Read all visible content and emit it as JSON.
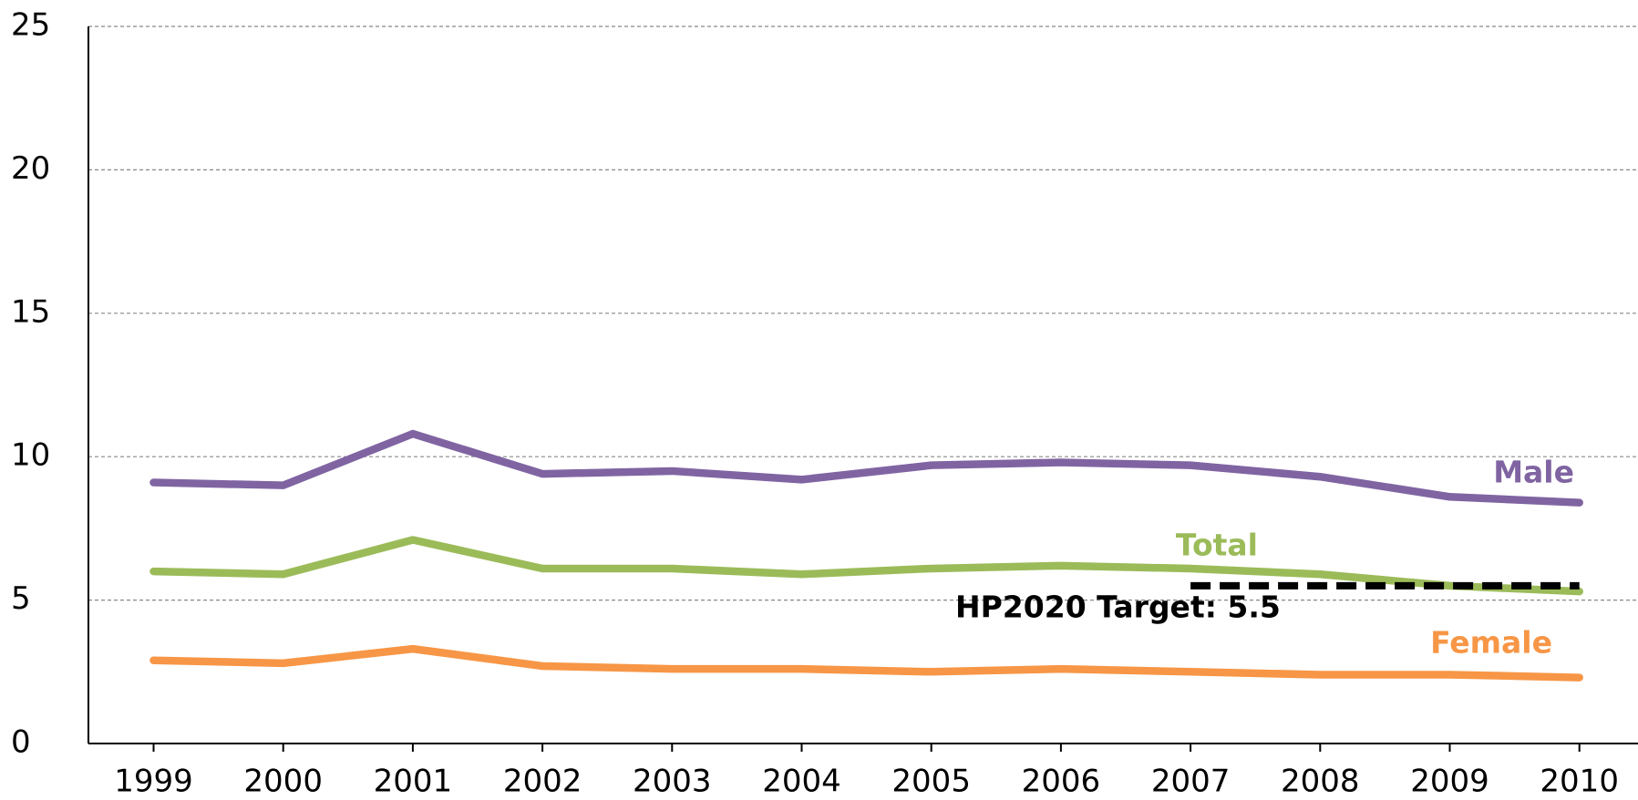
{
  "chart_data": {
    "type": "line",
    "categories": [
      "1999",
      "2000",
      "2001",
      "2002",
      "2003",
      "2004",
      "2005",
      "2006",
      "2007",
      "2008",
      "2009",
      "2010"
    ],
    "series": [
      {
        "name": "Male",
        "color": "#8064a2",
        "values": [
          9.1,
          9.0,
          10.8,
          9.4,
          9.5,
          9.2,
          9.7,
          9.8,
          9.7,
          9.3,
          8.6,
          8.4
        ]
      },
      {
        "name": "Total",
        "color": "#9bbb59",
        "values": [
          6.0,
          5.9,
          7.1,
          6.1,
          6.1,
          5.9,
          6.1,
          6.2,
          6.1,
          5.9,
          5.5,
          5.3
        ]
      },
      {
        "name": "Female",
        "color": "#f79646",
        "values": [
          2.9,
          2.8,
          3.3,
          2.7,
          2.6,
          2.6,
          2.5,
          2.6,
          2.5,
          2.4,
          2.4,
          2.3
        ]
      },
      {
        "name": "HP2020 Target: 5.5",
        "color": "#000000",
        "dashed": true,
        "values": [
          null,
          null,
          null,
          null,
          null,
          null,
          null,
          null,
          5.5,
          5.5,
          5.5,
          5.5
        ]
      }
    ],
    "ylim": [
      0,
      25
    ],
    "yticks": [
      0,
      5,
      10,
      15,
      20,
      25
    ],
    "grid": true
  }
}
